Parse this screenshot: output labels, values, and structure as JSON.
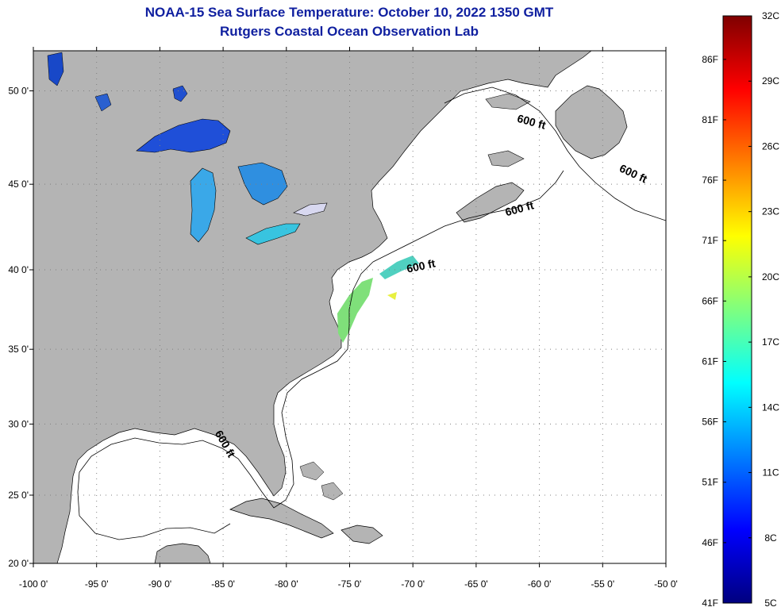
{
  "title": "NOAA-15 Sea Surface Temperature:  October 10, 2022 1350 GMT",
  "subtitle": "Rutgers Coastal Ocean Observation Lab",
  "map": {
    "lon_range": [
      -100,
      -50
    ],
    "lat_range": [
      20,
      52
    ],
    "lon_ticks": [
      {
        "value": -100,
        "label": "-100 0'"
      },
      {
        "value": -95,
        "label": "-95 0'"
      },
      {
        "value": -90,
        "label": "-90 0'"
      },
      {
        "value": -85,
        "label": "-85 0'"
      },
      {
        "value": -80,
        "label": "-80 0'"
      },
      {
        "value": -75,
        "label": "-75 0'"
      },
      {
        "value": -70,
        "label": "-70 0'"
      },
      {
        "value": -65,
        "label": "-65 0'"
      },
      {
        "value": -60,
        "label": "-60 0'"
      },
      {
        "value": -55,
        "label": "-55 0'"
      },
      {
        "value": -50,
        "label": "-50 0'"
      }
    ],
    "lat_ticks": [
      {
        "value": 20,
        "label": "20 0'"
      },
      {
        "value": 25,
        "label": "25 0'"
      },
      {
        "value": 30,
        "label": "30 0'"
      },
      {
        "value": 35,
        "label": "35 0'"
      },
      {
        "value": 40,
        "label": "40 0'"
      },
      {
        "value": 45,
        "label": "45 0'"
      },
      {
        "value": 50,
        "label": "50 0'"
      }
    ],
    "contour_labels": [
      {
        "text": "600 ft",
        "lon": -60.7,
        "lat": 48.2,
        "angle": 15
      },
      {
        "text": "600 ft",
        "lon": -52.7,
        "lat": 45.4,
        "angle": 25
      },
      {
        "text": "600 ft",
        "lon": -61.5,
        "lat": 43.4,
        "angle": -15
      },
      {
        "text": "600 ft",
        "lon": -69.3,
        "lat": 40.0,
        "angle": -12
      },
      {
        "text": "600 ft",
        "lon": -85.1,
        "lat": 28.5,
        "angle": 60
      }
    ],
    "colors": {
      "land": "#b4b4b4",
      "ocean": "#ffffff",
      "grid": "#808080"
    }
  },
  "colorbar": {
    "celsius": [
      {
        "value": 5,
        "label": "5C"
      },
      {
        "value": 8,
        "label": "8C"
      },
      {
        "value": 11,
        "label": "11C"
      },
      {
        "value": 14,
        "label": "14C"
      },
      {
        "value": 17,
        "label": "17C"
      },
      {
        "value": 20,
        "label": "20C"
      },
      {
        "value": 23,
        "label": "23C"
      },
      {
        "value": 26,
        "label": "26C"
      },
      {
        "value": 29,
        "label": "29C"
      },
      {
        "value": 32,
        "label": "32C"
      }
    ],
    "fahrenheit": [
      {
        "value": 41,
        "label": "41F"
      },
      {
        "value": 46,
        "label": "46F"
      },
      {
        "value": 51,
        "label": "51F"
      },
      {
        "value": 56,
        "label": "56F"
      },
      {
        "value": 61,
        "label": "61F"
      },
      {
        "value": 66,
        "label": "66F"
      },
      {
        "value": 71,
        "label": "71F"
      },
      {
        "value": 76,
        "label": "76F"
      },
      {
        "value": 81,
        "label": "81F"
      },
      {
        "value": 86,
        "label": "86F"
      }
    ],
    "colormap": [
      "#00007f",
      "#0000ff",
      "#007fff",
      "#00ffff",
      "#7fff7f",
      "#ffff00",
      "#ff7f00",
      "#ff0000",
      "#7f0000"
    ]
  }
}
